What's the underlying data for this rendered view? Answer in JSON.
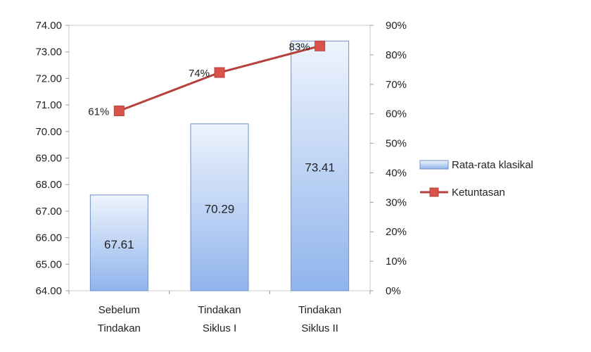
{
  "chart_data": {
    "type": "bar",
    "title": "",
    "xlabel": "",
    "ylabel": "",
    "categories": [
      [
        "Sebelum",
        "Tindakan"
      ],
      [
        "Tindakan",
        "Siklus I"
      ],
      [
        "Tindakan",
        "Siklus II"
      ]
    ],
    "series": [
      {
        "name": "Rata-rata klasikal",
        "type": "bar",
        "axis": "left",
        "values": [
          67.61,
          70.29,
          73.41
        ],
        "labels": [
          "67.61",
          "70.29",
          "73.41"
        ],
        "color_top": "#eef4fd",
        "color_bottom": "#8fb4ec"
      },
      {
        "name": "Ketuntasan",
        "type": "line",
        "axis": "right",
        "values": [
          61,
          74,
          83
        ],
        "labels": [
          "61%",
          "74%",
          "83%"
        ],
        "color": "#b5413c",
        "marker_color": "#d9534a"
      }
    ],
    "y_left": {
      "min": 64,
      "max": 74,
      "ticks": [
        "64.00",
        "65.00",
        "66.00",
        "67.00",
        "68.00",
        "69.00",
        "70.00",
        "71.00",
        "72.00",
        "73.00",
        "74.00"
      ]
    },
    "y_right": {
      "min": 0,
      "max": 90,
      "ticks": [
        "0%",
        "10%",
        "20%",
        "30%",
        "40%",
        "50%",
        "60%",
        "70%",
        "80%",
        "90%"
      ]
    },
    "legend_position": "right",
    "grid": false
  }
}
